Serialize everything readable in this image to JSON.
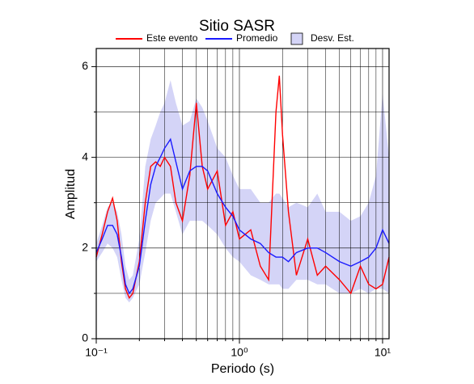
{
  "chart_data": {
    "type": "line",
    "title": "Sitio SASR",
    "x_label": "Periodo (s)",
    "y_label": "Amplitud",
    "log_x": true,
    "grid": true,
    "x": [
      0.1,
      0.11,
      0.12,
      0.13,
      0.14,
      0.15,
      0.16,
      0.17,
      0.18,
      0.2,
      0.22,
      0.24,
      0.26,
      0.28,
      0.3,
      0.33,
      0.36,
      0.4,
      0.45,
      0.5,
      0.55,
      0.6,
      0.7,
      0.8,
      0.9,
      1.0,
      1.2,
      1.4,
      1.6,
      1.8,
      1.9,
      2.0,
      2.2,
      2.5,
      3,
      3.5,
      4,
      5,
      6,
      7,
      8,
      9,
      10,
      11.1
    ],
    "series": [
      {
        "name": "Este evento",
        "color": "#ff0000",
        "values": [
          1.8,
          2.3,
          2.8,
          3.1,
          2.6,
          1.7,
          1.1,
          0.9,
          1.0,
          1.7,
          3.0,
          3.8,
          3.9,
          3.8,
          4.0,
          3.8,
          3.0,
          2.6,
          3.6,
          5.2,
          3.8,
          3.3,
          3.7,
          2.5,
          2.8,
          2.2,
          2.4,
          1.6,
          1.3,
          5.0,
          5.8,
          4.5,
          2.8,
          1.4,
          2.2,
          1.4,
          1.6,
          1.3,
          1.0,
          1.6,
          1.2,
          1.1,
          1.2,
          1.8
        ]
      },
      {
        "name": "Promedio",
        "color": "#1a1aff",
        "values": [
          1.9,
          2.2,
          2.5,
          2.5,
          2.3,
          1.8,
          1.2,
          1.0,
          1.1,
          1.6,
          2.6,
          3.4,
          3.8,
          4.0,
          4.2,
          4.4,
          3.9,
          3.3,
          3.7,
          3.8,
          3.8,
          3.7,
          3.2,
          2.9,
          2.7,
          2.4,
          2.2,
          2.1,
          1.9,
          1.8,
          1.8,
          1.8,
          1.7,
          1.9,
          2.0,
          2.0,
          1.9,
          1.7,
          1.6,
          1.7,
          1.8,
          2.0,
          2.4,
          2.1
        ]
      }
    ],
    "band": {
      "name": "Desv. Est.",
      "color": "#d4d4f7",
      "upper": [
        2.1,
        2.5,
        2.9,
        3.0,
        2.8,
        2.3,
        1.6,
        1.3,
        1.4,
        2.2,
        3.8,
        4.4,
        4.7,
        5.0,
        5.2,
        5.7,
        5.2,
        4.7,
        4.8,
        5.3,
        5.1,
        4.8,
        4.2,
        4.0,
        3.6,
        3.3,
        3.3,
        3.0,
        3.0,
        3.2,
        3.2,
        3.1,
        2.9,
        3.0,
        2.9,
        3.2,
        2.8,
        2.8,
        2.6,
        2.7,
        3.0,
        3.6,
        5.4,
        4.0
      ],
      "lower": [
        1.7,
        1.9,
        2.1,
        2.0,
        1.8,
        1.3,
        0.9,
        0.8,
        0.9,
        1.2,
        1.9,
        2.6,
        3.0,
        3.1,
        3.2,
        3.2,
        2.8,
        2.3,
        2.6,
        2.6,
        2.6,
        2.5,
        2.3,
        2.0,
        1.8,
        1.7,
        1.4,
        1.3,
        1.2,
        1.2,
        1.2,
        1.1,
        1.1,
        1.3,
        1.3,
        1.2,
        1.2,
        1.0,
        1.0,
        1.1,
        1.0,
        1.1,
        1.1,
        1.0
      ]
    },
    "xlim": [
      0.1,
      11.1
    ],
    "ylim": [
      0,
      6.4
    ],
    "xticks": [
      {
        "value": 0.1,
        "label": "10⁻¹"
      },
      {
        "value": 1,
        "label": "10⁰"
      },
      {
        "value": 10,
        "label": "10¹"
      }
    ],
    "x_minor_ticks": [
      0.2,
      0.3,
      0.4,
      0.5,
      0.6,
      0.7,
      0.8,
      0.9,
      2,
      3,
      4,
      5,
      6,
      7,
      8,
      9
    ],
    "yticks": [
      0,
      2,
      4,
      6
    ],
    "y_minor_ticks": [
      1,
      3,
      5
    ]
  }
}
